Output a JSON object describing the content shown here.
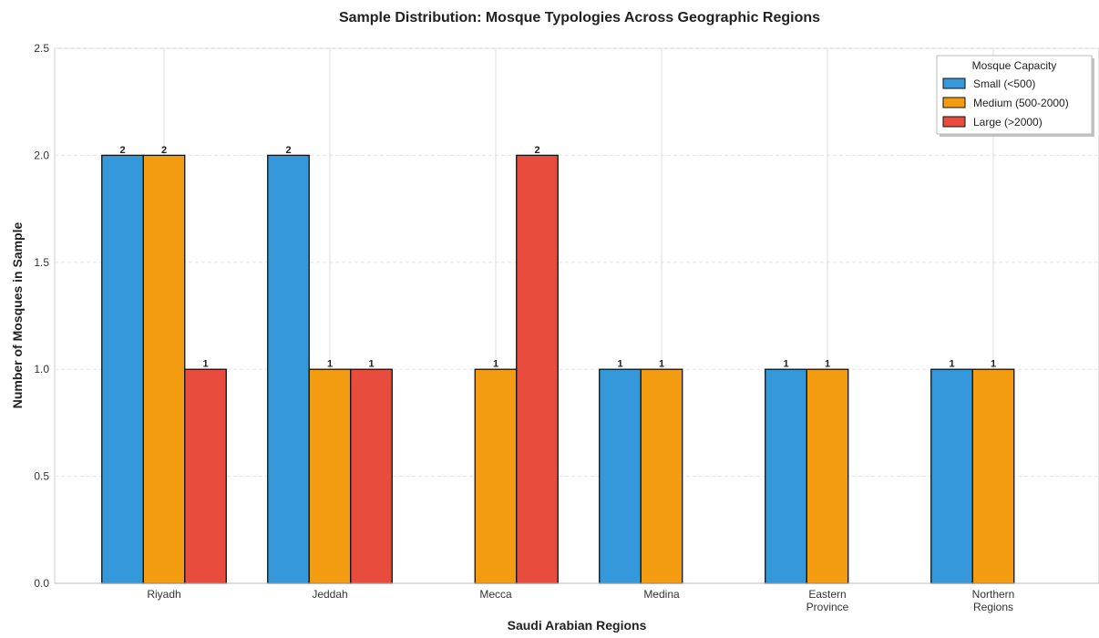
{
  "chart_data": {
    "type": "bar",
    "title": "Sample Distribution: Mosque Typologies Across Geographic Regions",
    "xlabel": "Saudi Arabian Regions",
    "ylabel": "Number of Mosques in Sample",
    "categories": [
      [
        "Riyadh"
      ],
      [
        "Jeddah"
      ],
      [
        "Mecca"
      ],
      [
        "Medina"
      ],
      [
        "Eastern",
        "Province"
      ],
      [
        "Northern",
        "Regions"
      ]
    ],
    "ylim": [
      0,
      2.5
    ],
    "yticks": [
      "0.0",
      "0.5",
      "1.0",
      "1.5",
      "2.0",
      "2.5"
    ],
    "grid": true,
    "legend": {
      "title": "Mosque Capacity",
      "placement": "top-right"
    },
    "series": [
      {
        "name": "Small (<500)",
        "color": "#3498db",
        "values": [
          2,
          2,
          0,
          1,
          1,
          1
        ]
      },
      {
        "name": "Medium (500-2000)",
        "color": "#f39c12",
        "values": [
          2,
          1,
          1,
          1,
          1,
          1
        ]
      },
      {
        "name": "Large (>2000)",
        "color": "#e74c3c",
        "values": [
          1,
          1,
          2,
          0,
          0,
          0
        ]
      }
    ]
  }
}
